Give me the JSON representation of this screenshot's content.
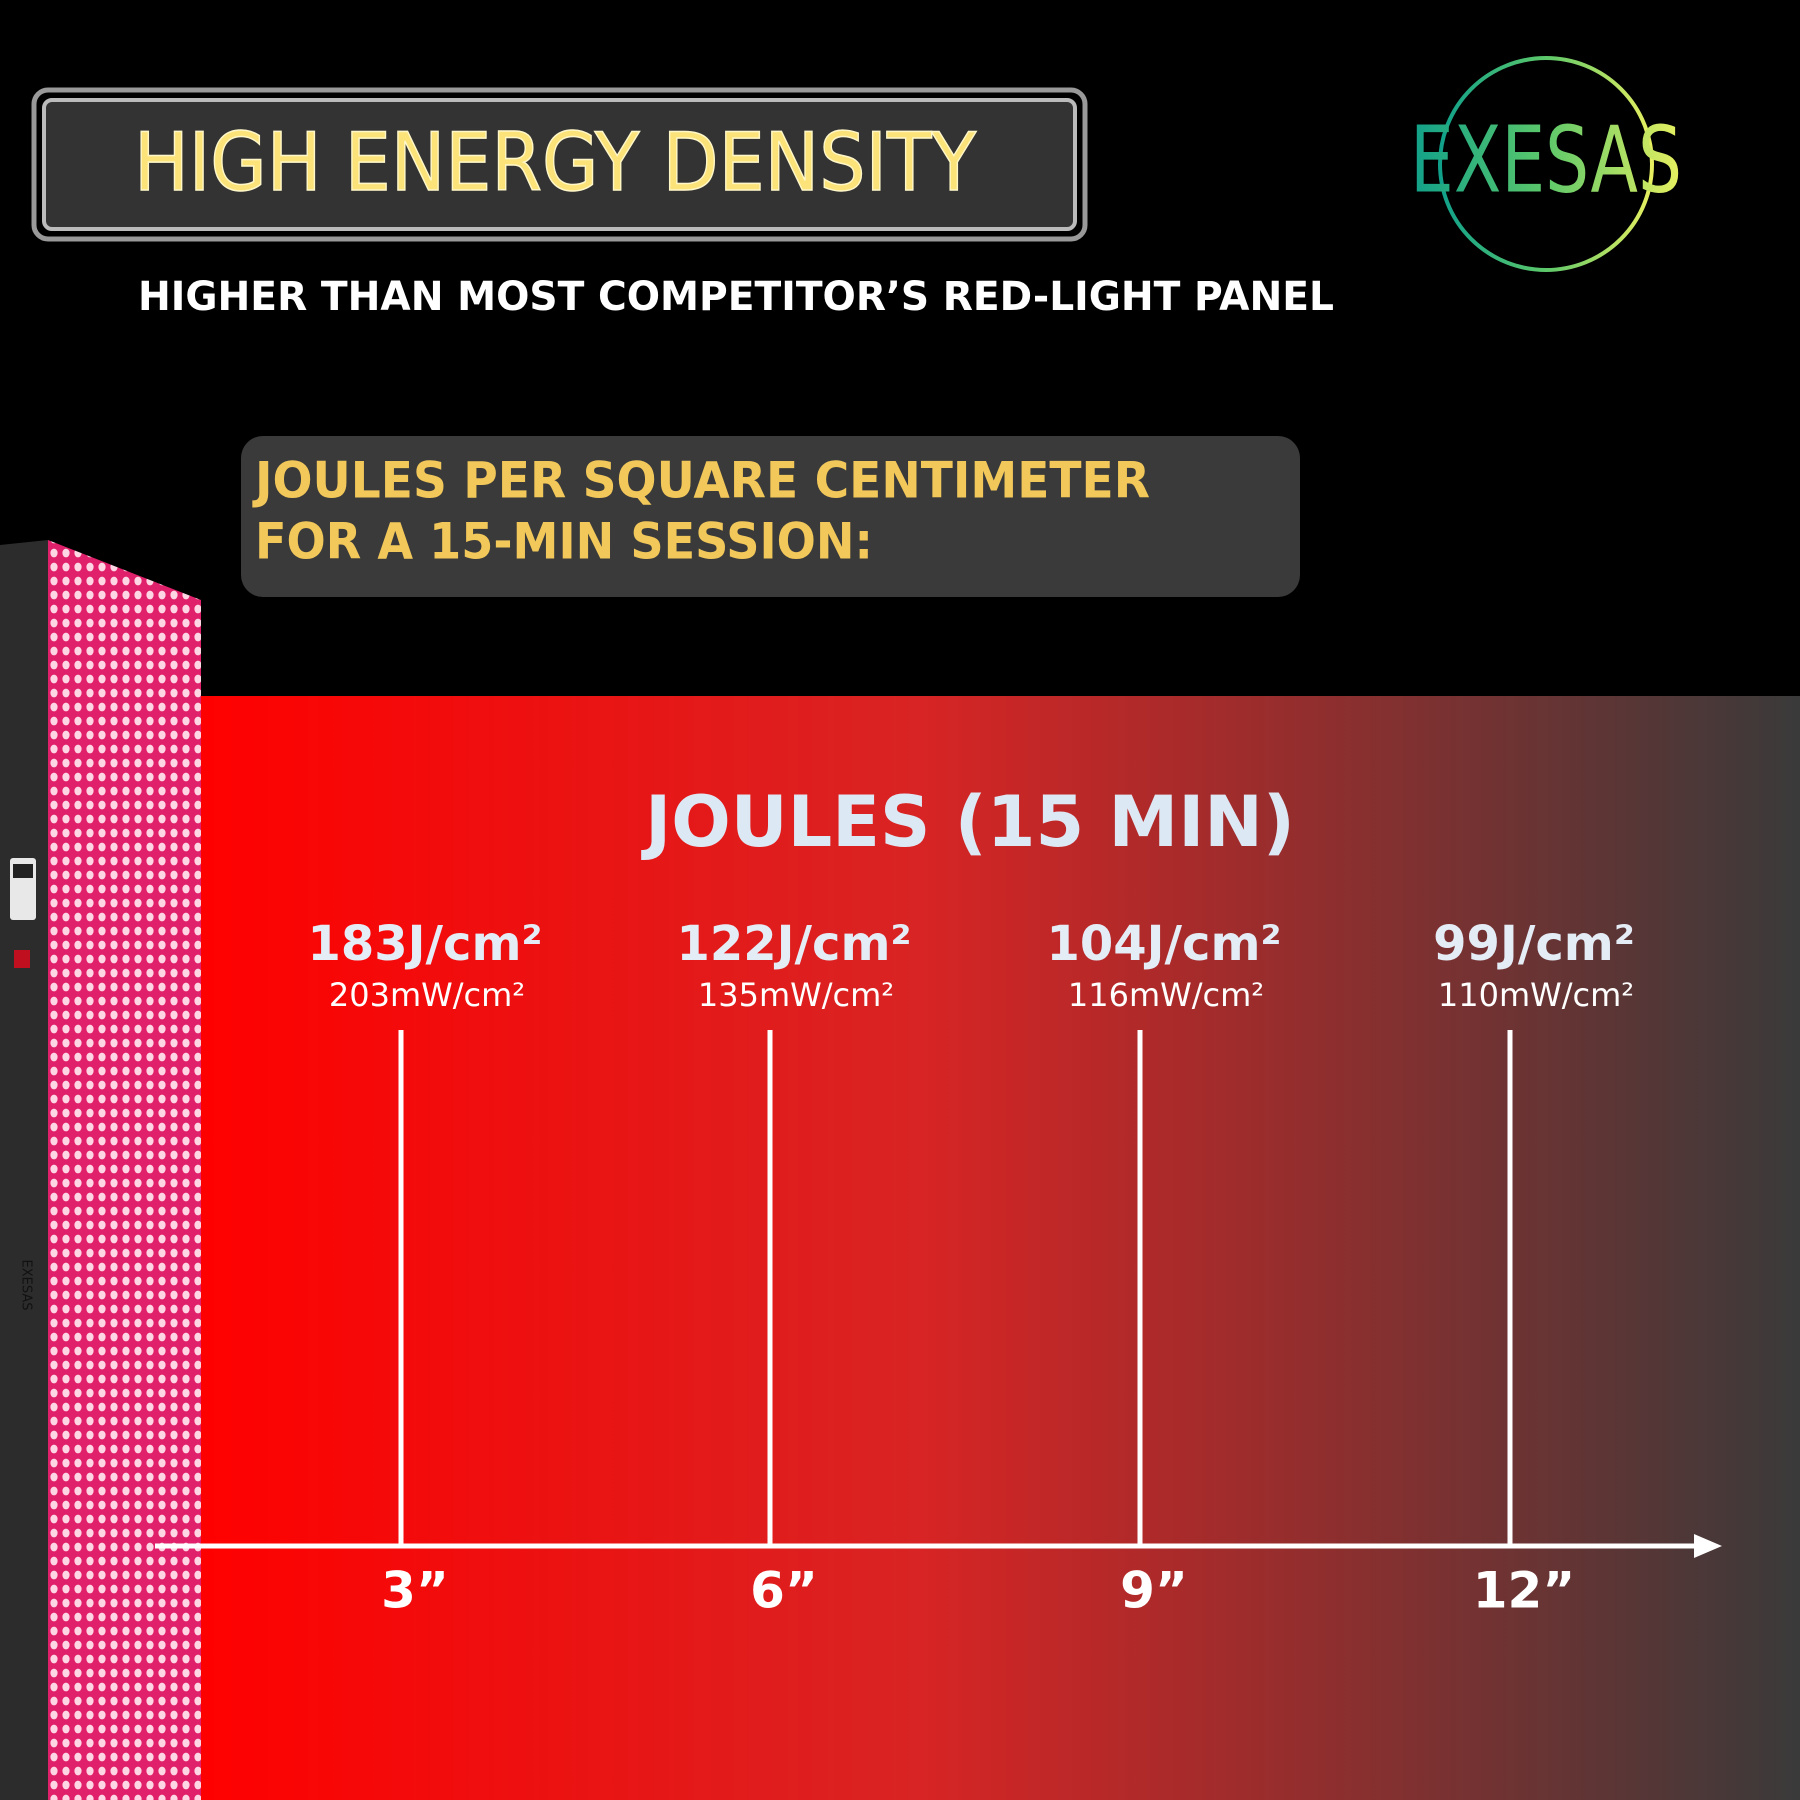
{
  "header": {
    "title": "HIGH ENERGY DENSITY",
    "subtitle": "HIGHER THAN MOST COMPETITOR’S RED-LIGHT PANEL"
  },
  "logo": "EXESAS",
  "callout": [
    "JOULES PER SQUARE CENTIMETER",
    "FOR A 15-MIN SESSION:"
  ],
  "panel": {
    "label": "EXESAS"
  },
  "section_title": "JOULES (15 MIN)",
  "measurements": [
    {
      "distance": "3”",
      "joules": "183J/cm²",
      "irradiance": "203mW/cm²"
    },
    {
      "distance": "6”",
      "joules": "122J/cm²",
      "irradiance": "135mW/cm²"
    },
    {
      "distance": "9”",
      "joules": "104J/cm²",
      "irradiance": "116mW/cm²"
    },
    {
      "distance": "12”",
      "joules": "99J/cm²",
      "irradiance": "110mW/cm²"
    }
  ]
}
